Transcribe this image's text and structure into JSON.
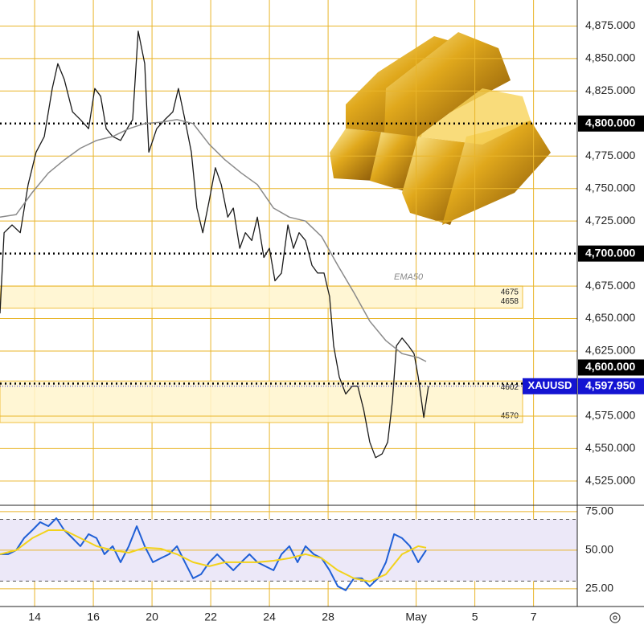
{
  "chart_data": [
    {
      "type": "line",
      "xlim": [
        -1.18,
        18.49
      ],
      "ylim": [
        4507,
        4895
      ],
      "yticks": [
        {
          "value": 4875,
          "label": "4,875.000"
        },
        {
          "value": 4850,
          "label": "4,850.000"
        },
        {
          "value": 4825,
          "label": "4,825.000"
        },
        {
          "value": 4775,
          "label": "4,775.000"
        },
        {
          "value": 4750,
          "label": "4,750.000"
        },
        {
          "value": 4725,
          "label": "4,725.000"
        },
        {
          "value": 4675,
          "label": "4,675.000"
        },
        {
          "value": 4650,
          "label": "4,650.000"
        },
        {
          "value": 4625,
          "label": "4,625.000"
        },
        {
          "value": 4575,
          "label": "4,575.000"
        },
        {
          "value": 4550,
          "label": "4,550.000"
        },
        {
          "value": 4525,
          "label": "4,525.000"
        }
      ],
      "levels": [
        {
          "value": 4800,
          "label": "4,800.000"
        },
        {
          "value": 4700,
          "label": "4,700.000"
        },
        {
          "value": 4600,
          "label": "4,600.000"
        }
      ],
      "zones": [
        {
          "high": 4675,
          "low": 4658
        },
        {
          "high": 4602,
          "low": 4570
        }
      ],
      "current": {
        "symbol": "XAUUSD",
        "value": 4597.95,
        "label": "4,597.950",
        "color": "#1414d2"
      },
      "grid": true,
      "series": [
        {
          "color": "#1a1a1a",
          "x": [
            -1.18,
            -1.04,
            -0.77,
            -0.49,
            -0.22,
            0.05,
            0.33,
            0.6,
            0.79,
            1.01,
            1.29,
            1.56,
            1.84,
            2.05,
            2.25,
            2.44,
            2.66,
            2.93,
            3.15,
            3.34,
            3.53,
            3.75,
            3.89,
            4.16,
            4.44,
            4.71,
            4.9,
            5.12,
            5.34,
            5.53,
            5.73,
            5.95,
            6.16,
            6.36,
            6.58,
            6.77,
            6.99,
            7.18,
            7.4,
            7.59,
            7.81,
            8.0,
            8.19,
            8.41,
            8.63,
            8.82,
            9.01,
            9.23,
            9.45,
            9.64,
            9.86,
            10.05,
            10.19,
            10.38,
            10.6,
            10.82,
            11.01,
            11.21,
            11.42,
            11.62,
            11.84,
            12.03,
            12.19,
            12.33,
            12.52,
            12.74,
            12.93,
            13.07,
            13.26,
            13.42
          ],
          "values": [
            4654,
            4716,
            4722,
            4716,
            4753,
            4778,
            4790,
            4827,
            4846,
            4834,
            4809,
            4803,
            4796,
            4827,
            4821,
            4796,
            4790,
            4787,
            4796,
            4803,
            4871,
            4846,
            4778,
            4796,
            4803,
            4809,
            4827,
            4803,
            4778,
            4735,
            4716,
            4741,
            4766,
            4753,
            4728,
            4735,
            4704,
            4716,
            4710,
            4728,
            4697,
            4704,
            4679,
            4685,
            4722,
            4704,
            4716,
            4710,
            4691,
            4685,
            4685,
            4667,
            4629,
            4605,
            4592,
            4598,
            4598,
            4580,
            4555,
            4543,
            4546,
            4555,
            4586,
            4629,
            4635,
            4629,
            4623,
            4605,
            4574,
            4598
          ]
        },
        {
          "name": "EMA50",
          "color": "#8a8a8a",
          "x": [
            -1.18,
            -0.63,
            -0.08,
            0.47,
            1.01,
            1.56,
            2.11,
            2.66,
            3.21,
            3.75,
            4.3,
            4.85,
            5.4,
            5.95,
            6.49,
            7.04,
            7.59,
            8.14,
            8.68,
            9.23,
            9.78,
            10.33,
            10.88,
            11.42,
            11.97,
            12.52,
            13.07,
            13.34
          ],
          "values": [
            4728,
            4730,
            4747,
            4762,
            4772,
            4781,
            4787,
            4790,
            4796,
            4800,
            4801,
            4803,
            4800,
            4784,
            4772,
            4762,
            4753,
            4735,
            4728,
            4725,
            4713,
            4691,
            4670,
            4648,
            4633,
            4623,
            4620,
            4617
          ]
        }
      ]
    },
    {
      "type": "line",
      "xlim": [
        -1.18,
        18.49
      ],
      "ylim": [
        13.5,
        78.6
      ],
      "xticks": [
        {
          "value": 0,
          "label": "14"
        },
        {
          "value": 2,
          "label": "16"
        },
        {
          "value": 4,
          "label": "20"
        },
        {
          "value": 6,
          "label": "22"
        },
        {
          "value": 8,
          "label": "24"
        },
        {
          "value": 10,
          "label": "28"
        },
        {
          "value": 13,
          "label": "May"
        },
        {
          "value": 15,
          "label": "5"
        },
        {
          "value": 17,
          "label": "7"
        }
      ],
      "yticks": [
        {
          "value": 75,
          "label": "75.00"
        },
        {
          "value": 50,
          "label": "50.00"
        },
        {
          "value": 25,
          "label": "25.00"
        }
      ],
      "bands": [
        30,
        70
      ],
      "series": [
        {
          "color": "#1f5fd6",
          "x": [
            -1.18,
            -0.9,
            -0.63,
            -0.36,
            -0.08,
            0.19,
            0.47,
            0.74,
            1.01,
            1.29,
            1.56,
            1.84,
            2.11,
            2.38,
            2.66,
            2.93,
            3.21,
            3.48,
            3.75,
            4.03,
            4.3,
            4.58,
            4.85,
            5.12,
            5.4,
            5.67,
            5.95,
            6.22,
            6.49,
            6.77,
            7.04,
            7.32,
            7.59,
            7.86,
            8.14,
            8.41,
            8.68,
            8.96,
            9.23,
            9.51,
            9.78,
            10.05,
            10.33,
            10.6,
            10.88,
            11.15,
            11.42,
            11.7,
            11.97,
            12.25,
            12.52,
            12.79,
            13.07,
            13.34
          ],
          "values": [
            47.4,
            47.4,
            50,
            57.8,
            63,
            68.2,
            65.6,
            70.8,
            63,
            57.8,
            52.6,
            60.4,
            57.8,
            47.4,
            52.6,
            42.2,
            52.6,
            65.6,
            52.6,
            42.2,
            44.8,
            47.4,
            52.6,
            42.2,
            31.8,
            34.4,
            42.2,
            47.4,
            42.2,
            37,
            42.2,
            47.4,
            42.2,
            39.6,
            37,
            47.4,
            52.6,
            42.2,
            52.6,
            47.4,
            44.8,
            37,
            26.6,
            24,
            31.8,
            31.8,
            26.6,
            31.8,
            42.2,
            60.4,
            57.8,
            52.6,
            42.2,
            50
          ]
        },
        {
          "color": "#f2d21b",
          "x": [
            -1.18,
            -0.63,
            -0.08,
            0.47,
            1.01,
            1.56,
            2.11,
            2.66,
            3.21,
            3.75,
            4.3,
            4.85,
            5.4,
            5.95,
            6.49,
            7.04,
            7.59,
            8.14,
            8.68,
            9.23,
            9.78,
            10.33,
            10.88,
            11.42,
            11.97,
            12.52,
            13.07,
            13.34
          ],
          "values": [
            47.4,
            50,
            57.8,
            63,
            63,
            57.8,
            52.6,
            50,
            48.4,
            51.6,
            51,
            47.4,
            42.2,
            39.6,
            42.2,
            42.2,
            42.2,
            43.2,
            44.8,
            47.4,
            44.8,
            37,
            31.8,
            29.7,
            34.4,
            47.4,
            52.6,
            51.6
          ]
        }
      ]
    }
  ]
}
